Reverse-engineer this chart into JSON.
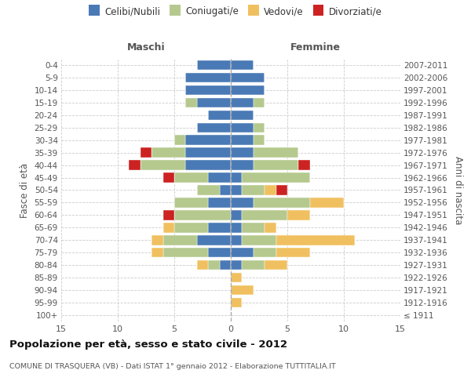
{
  "age_groups": [
    "100+",
    "95-99",
    "90-94",
    "85-89",
    "80-84",
    "75-79",
    "70-74",
    "65-69",
    "60-64",
    "55-59",
    "50-54",
    "45-49",
    "40-44",
    "35-39",
    "30-34",
    "25-29",
    "20-24",
    "15-19",
    "10-14",
    "5-9",
    "0-4"
  ],
  "birth_years": [
    "≤ 1911",
    "1912-1916",
    "1917-1921",
    "1922-1926",
    "1927-1931",
    "1932-1936",
    "1937-1941",
    "1942-1946",
    "1947-1951",
    "1952-1956",
    "1957-1961",
    "1962-1966",
    "1967-1971",
    "1972-1976",
    "1977-1981",
    "1982-1986",
    "1987-1991",
    "1992-1996",
    "1997-2001",
    "2002-2006",
    "2007-2011"
  ],
  "colors": {
    "celibi": "#4a7ab5",
    "coniugati": "#b5c98e",
    "vedovi": "#f0c060",
    "divorziati": "#cc2222"
  },
  "maschi": {
    "celibi": [
      0,
      0,
      0,
      0,
      1,
      2,
      3,
      2,
      0,
      2,
      1,
      2,
      4,
      4,
      4,
      3,
      2,
      3,
      4,
      4,
      3
    ],
    "coniugati": [
      0,
      0,
      0,
      0,
      1,
      4,
      3,
      3,
      5,
      3,
      2,
      3,
      4,
      3,
      1,
      0,
      0,
      1,
      0,
      0,
      0
    ],
    "vedovi": [
      0,
      0,
      0,
      0,
      1,
      1,
      1,
      1,
      0,
      0,
      0,
      0,
      0,
      0,
      0,
      0,
      0,
      0,
      0,
      0,
      0
    ],
    "divorziati": [
      0,
      0,
      0,
      0,
      0,
      0,
      0,
      0,
      1,
      0,
      0,
      1,
      1,
      1,
      0,
      0,
      0,
      0,
      0,
      0,
      0
    ]
  },
  "femmine": {
    "celibi": [
      0,
      0,
      0,
      0,
      1,
      2,
      1,
      1,
      1,
      2,
      1,
      1,
      2,
      2,
      2,
      2,
      2,
      2,
      3,
      3,
      2
    ],
    "coniugati": [
      0,
      0,
      0,
      0,
      2,
      2,
      3,
      2,
      4,
      5,
      2,
      6,
      4,
      4,
      1,
      1,
      0,
      1,
      0,
      0,
      0
    ],
    "vedovi": [
      0,
      1,
      2,
      1,
      2,
      3,
      7,
      1,
      2,
      3,
      1,
      0,
      0,
      0,
      0,
      0,
      0,
      0,
      0,
      0,
      0
    ],
    "divorziati": [
      0,
      0,
      0,
      0,
      0,
      0,
      0,
      0,
      0,
      0,
      1,
      0,
      1,
      0,
      0,
      0,
      0,
      0,
      0,
      0,
      0
    ]
  },
  "xlim": 15,
  "title": "Popolazione per età, sesso e stato civile - 2012",
  "subtitle": "COMUNE DI TRASQUERA (VB) - Dati ISTAT 1° gennaio 2012 - Elaborazione TUTTITALIA.IT",
  "ylabel": "Fasce di età",
  "y2label": "Anni di nascita",
  "legend_labels": [
    "Celibi/Nubili",
    "Coniugati/e",
    "Vedovi/e",
    "Divorziati/e"
  ],
  "maschi_label": "Maschi",
  "femmine_label": "Femmine",
  "bg_color": "#ffffff",
  "grid_color": "#cccccc"
}
